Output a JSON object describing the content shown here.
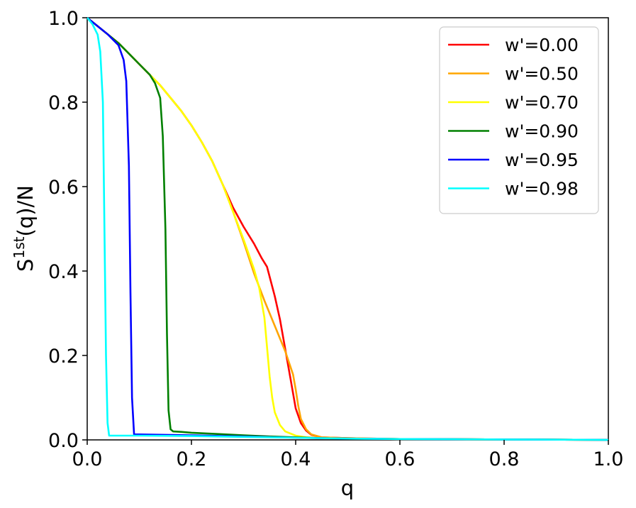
{
  "chart_data": {
    "type": "line",
    "title": "",
    "xlabel": "q",
    "ylabel_base": "S",
    "ylabel_sup": "1st",
    "ylabel_rest": "(q)/N",
    "xlim": [
      0,
      1
    ],
    "ylim": [
      0,
      1
    ],
    "xticks": [
      0,
      0.2,
      0.4,
      0.6,
      0.8,
      1
    ],
    "yticks": [
      0,
      0.2,
      0.4,
      0.6,
      0.8,
      1
    ],
    "xtick_labels": [
      "0.0",
      "0.2",
      "0.4",
      "0.6",
      "0.8",
      "1.0"
    ],
    "ytick_labels": [
      "0.0",
      "0.2",
      "0.4",
      "0.6",
      "0.8",
      "1.0"
    ],
    "grid": false,
    "legend_position": "top-right",
    "series": [
      {
        "name": "w'=0.00",
        "color": "#ff0000",
        "x": [
          0,
          0.02,
          0.04,
          0.06,
          0.08,
          0.1,
          0.12,
          0.14,
          0.16,
          0.18,
          0.2,
          0.22,
          0.24,
          0.26,
          0.28,
          0.3,
          0.32,
          0.335,
          0.345,
          0.36,
          0.37,
          0.38,
          0.39,
          0.4,
          0.41,
          0.42,
          0.43,
          0.45,
          0.5,
          0.6,
          0.8,
          1.0
        ],
        "y": [
          1.0,
          0.98,
          0.96,
          0.94,
          0.915,
          0.89,
          0.865,
          0.84,
          0.81,
          0.78,
          0.745,
          0.705,
          0.66,
          0.605,
          0.55,
          0.505,
          0.465,
          0.43,
          0.41,
          0.34,
          0.285,
          0.215,
          0.145,
          0.075,
          0.04,
          0.022,
          0.012,
          0.006,
          0.004,
          0.002,
          0.001,
          0.0
        ]
      },
      {
        "name": "w'=0.50",
        "color": "#ffa500",
        "x": [
          0,
          0.02,
          0.04,
          0.06,
          0.08,
          0.1,
          0.12,
          0.14,
          0.16,
          0.18,
          0.2,
          0.22,
          0.24,
          0.26,
          0.28,
          0.3,
          0.32,
          0.34,
          0.36,
          0.38,
          0.395,
          0.4,
          0.405,
          0.41,
          0.42,
          0.43,
          0.45,
          0.5,
          0.6,
          0.8,
          1.0
        ],
        "y": [
          1.0,
          0.98,
          0.96,
          0.94,
          0.915,
          0.89,
          0.865,
          0.84,
          0.81,
          0.78,
          0.745,
          0.705,
          0.66,
          0.605,
          0.54,
          0.47,
          0.395,
          0.33,
          0.27,
          0.21,
          0.155,
          0.12,
          0.08,
          0.05,
          0.025,
          0.013,
          0.006,
          0.004,
          0.002,
          0.001,
          0.0
        ]
      },
      {
        "name": "w'=0.70",
        "color": "#ffff00",
        "x": [
          0,
          0.02,
          0.04,
          0.06,
          0.08,
          0.1,
          0.12,
          0.14,
          0.16,
          0.18,
          0.2,
          0.22,
          0.24,
          0.26,
          0.28,
          0.3,
          0.32,
          0.33,
          0.34,
          0.345,
          0.35,
          0.355,
          0.36,
          0.37,
          0.38,
          0.4,
          0.42,
          0.45,
          0.5,
          0.6,
          0.8,
          1.0
        ],
        "y": [
          1.0,
          0.98,
          0.96,
          0.94,
          0.915,
          0.89,
          0.865,
          0.84,
          0.81,
          0.78,
          0.745,
          0.705,
          0.66,
          0.605,
          0.54,
          0.475,
          0.405,
          0.36,
          0.29,
          0.22,
          0.15,
          0.1,
          0.065,
          0.035,
          0.02,
          0.01,
          0.006,
          0.004,
          0.003,
          0.002,
          0.001,
          0.0
        ]
      },
      {
        "name": "w'=0.90",
        "color": "#008000",
        "x": [
          0,
          0.02,
          0.04,
          0.06,
          0.08,
          0.1,
          0.12,
          0.13,
          0.14,
          0.145,
          0.15,
          0.153,
          0.156,
          0.16,
          0.165,
          0.18,
          0.2,
          0.25,
          0.3,
          0.35,
          0.4,
          0.45,
          0.5,
          0.6,
          0.8,
          1.0
        ],
        "y": [
          1.0,
          0.98,
          0.96,
          0.94,
          0.915,
          0.89,
          0.865,
          0.845,
          0.81,
          0.72,
          0.5,
          0.25,
          0.07,
          0.025,
          0.02,
          0.019,
          0.017,
          0.014,
          0.011,
          0.008,
          0.006,
          0.004,
          0.003,
          0.002,
          0.001,
          0.0
        ]
      },
      {
        "name": "w'=0.95",
        "color": "#0000ff",
        "x": [
          0,
          0.02,
          0.04,
          0.06,
          0.07,
          0.075,
          0.08,
          0.083,
          0.086,
          0.09,
          0.1,
          0.15,
          0.2,
          0.3,
          0.4,
          0.5,
          0.6,
          0.8,
          1.0
        ],
        "y": [
          1.0,
          0.98,
          0.96,
          0.935,
          0.9,
          0.85,
          0.65,
          0.35,
          0.1,
          0.013,
          0.013,
          0.012,
          0.011,
          0.008,
          0.005,
          0.003,
          0.002,
          0.001,
          0.0
        ]
      },
      {
        "name": "w'=0.98",
        "color": "#00ffff",
        "x": [
          0,
          0.01,
          0.02,
          0.025,
          0.03,
          0.033,
          0.036,
          0.039,
          0.042,
          0.05,
          0.1,
          0.2,
          0.3,
          0.4,
          0.5,
          0.6,
          0.8,
          1.0
        ],
        "y": [
          1.0,
          0.985,
          0.96,
          0.92,
          0.8,
          0.5,
          0.2,
          0.04,
          0.01,
          0.01,
          0.01,
          0.009,
          0.007,
          0.005,
          0.003,
          0.002,
          0.001,
          0.0
        ]
      }
    ]
  }
}
